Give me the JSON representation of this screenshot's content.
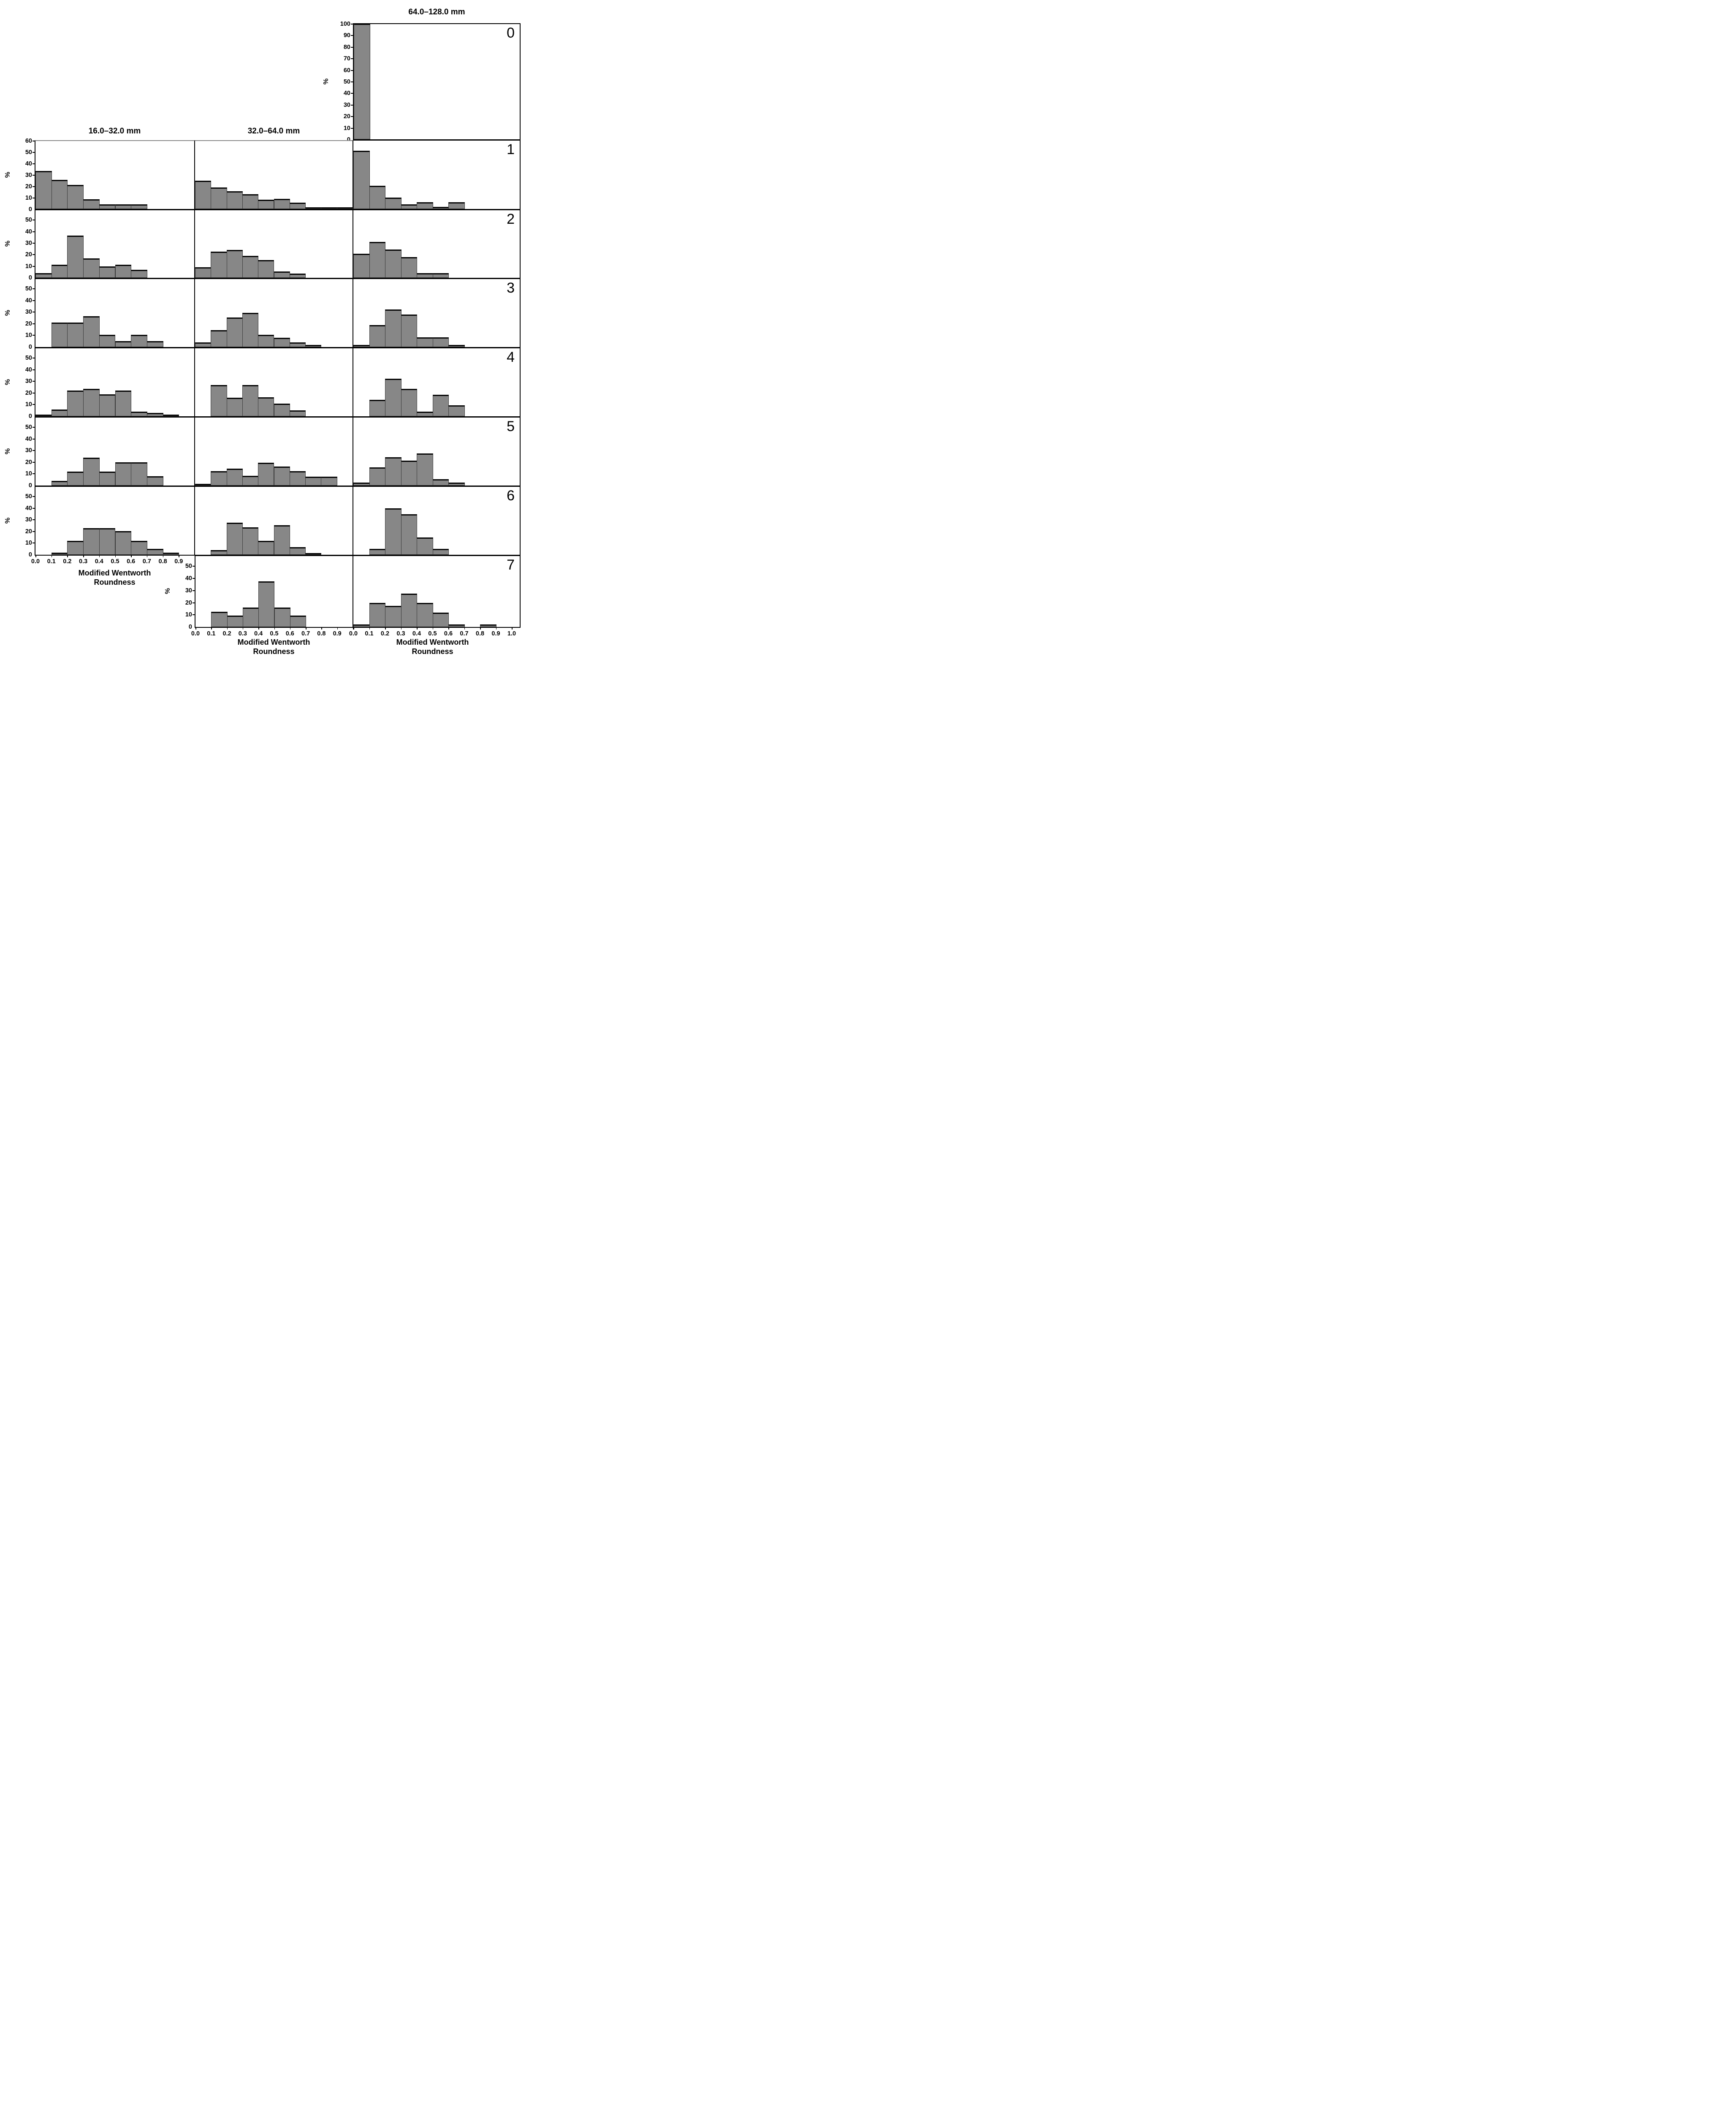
{
  "figure": {
    "column_titles": [
      "16.0–32.0 mm",
      "32.0–64.0 mm",
      "64.0–128.0 mm"
    ],
    "y_axis_label": "%",
    "x_axis_title_line1": "Modified Wentworth",
    "x_axis_title_line2": "Roundness",
    "bar_fill_color": "#878787",
    "bar_edge_color": "#050505",
    "bin_left_edges": [
      0.0,
      0.1,
      0.2,
      0.3,
      0.4,
      0.5,
      0.6,
      0.7,
      0.8,
      0.9
    ],
    "bin_width": 0.1,
    "xtick_labels_short": [
      "0.0",
      "0.1",
      "0.2",
      "0.3",
      "0.4",
      "0.5",
      "0.6",
      "0.7",
      "0.8",
      "0.9"
    ],
    "xtick_labels_full": [
      "0.0",
      "0.1",
      "0.2",
      "0.3",
      "0.4",
      "0.5",
      "0.6",
      "0.7",
      "0.8",
      "0.9",
      "1.0"
    ],
    "panel_numbers": [
      "0",
      "1",
      "2",
      "3",
      "4",
      "5",
      "6",
      "7"
    ]
  },
  "chart_data": [
    {
      "type": "bar",
      "panel_label": "0",
      "row": 0,
      "col": "R",
      "size_class": "64.0–128.0 mm",
      "values": [
        100,
        0,
        0,
        0,
        0,
        0,
        0,
        0,
        0,
        0
      ],
      "ylim": [
        0,
        100
      ],
      "yticks": [
        0,
        10,
        20,
        30,
        40,
        50,
        60,
        70,
        80,
        90,
        100
      ],
      "ylabel": "%",
      "show_yticklabels": true,
      "show_xticklabels": false,
      "xtick_set": "none"
    },
    {
      "type": "bar",
      "panel_label": "1",
      "row": 1,
      "col": "L",
      "size_class": "16.0–32.0 mm",
      "values": [
        33.5,
        25.5,
        21,
        8.5,
        4,
        4,
        4,
        0,
        0,
        0
      ],
      "ylim": [
        0,
        60
      ],
      "yticks": [
        0,
        10,
        20,
        30,
        40,
        50,
        60
      ],
      "ylabel": "%",
      "show_yticklabels": true,
      "show_xticklabels": false,
      "xtick_set": "none"
    },
    {
      "type": "bar",
      "panel_label": "1",
      "row": 1,
      "col": "M",
      "size_class": "32.0–64.0 mm",
      "values": [
        25,
        19,
        15.5,
        13,
        8,
        9,
        5.5,
        1.5,
        1.5,
        1.5
      ],
      "ylim": [
        0,
        60
      ],
      "yticks": [
        0,
        10,
        20,
        30,
        40,
        50,
        60
      ],
      "ylabel": "",
      "show_yticklabels": false,
      "show_xticklabels": false,
      "xtick_set": "none"
    },
    {
      "type": "bar",
      "panel_label": "1",
      "row": 1,
      "col": "R",
      "size_class": "64.0–128.0 mm",
      "values": [
        51,
        20.5,
        10,
        4,
        6,
        2,
        6,
        0,
        0,
        0
      ],
      "ylim": [
        0,
        60
      ],
      "yticks": [
        0,
        10,
        20,
        30,
        40,
        50,
        60
      ],
      "ylabel": "",
      "show_yticklabels": false,
      "show_xticklabels": false,
      "xtick_set": "none"
    },
    {
      "type": "bar",
      "panel_label": "2",
      "row": 2,
      "col": "L",
      "size_class": "16.0–32.0 mm",
      "values": [
        4,
        11.5,
        36.5,
        17,
        10,
        11.5,
        7,
        0,
        0,
        0
      ],
      "ylim": [
        0,
        58.5
      ],
      "yticks": [
        0,
        10,
        20,
        30,
        40,
        50
      ],
      "ylabel": "%",
      "show_yticklabels": true,
      "show_xticklabels": false,
      "xtick_set": "none"
    },
    {
      "type": "bar",
      "panel_label": "2",
      "row": 2,
      "col": "M",
      "size_class": "32.0–64.0 mm",
      "values": [
        9,
        22.5,
        24,
        19,
        15.5,
        5.5,
        3.5,
        0,
        0,
        0
      ],
      "ylim": [
        0,
        58.5
      ],
      "yticks": [
        0,
        10,
        20,
        30,
        40,
        50
      ],
      "ylabel": "",
      "show_yticklabels": false,
      "show_xticklabels": false,
      "xtick_set": "none"
    },
    {
      "type": "bar",
      "panel_label": "2",
      "row": 2,
      "col": "R",
      "size_class": "64.0–128.0 mm",
      "values": [
        21,
        31,
        24.5,
        18,
        4,
        4,
        0,
        0,
        0,
        0
      ],
      "ylim": [
        0,
        58.5
      ],
      "yticks": [
        0,
        10,
        20,
        30,
        40,
        50
      ],
      "ylabel": "",
      "show_yticklabels": false,
      "show_xticklabels": false,
      "xtick_set": "none"
    },
    {
      "type": "bar",
      "panel_label": "3",
      "row": 3,
      "col": "L",
      "size_class": "16.0–32.0 mm",
      "values": [
        0,
        21,
        21,
        26.5,
        10.5,
        5,
        10.5,
        5,
        0,
        0
      ],
      "ylim": [
        0,
        58.5
      ],
      "yticks": [
        0,
        10,
        20,
        30,
        40,
        50
      ],
      "ylabel": "%",
      "show_yticklabels": true,
      "show_xticklabels": false,
      "xtick_set": "none"
    },
    {
      "type": "bar",
      "panel_label": "3",
      "row": 3,
      "col": "M",
      "size_class": "32.0–64.0 mm",
      "values": [
        4,
        14.5,
        25.5,
        29.5,
        10.5,
        8,
        4,
        2,
        0,
        0
      ],
      "ylim": [
        0,
        58.5
      ],
      "yticks": [
        0,
        10,
        20,
        30,
        40,
        50
      ],
      "ylabel": "",
      "show_yticklabels": false,
      "show_xticklabels": false,
      "xtick_set": "none"
    },
    {
      "type": "bar",
      "panel_label": "3",
      "row": 3,
      "col": "R",
      "size_class": "64.0–128.0 mm",
      "values": [
        2,
        19,
        32.5,
        28,
        8.5,
        8.5,
        2,
        0,
        0,
        0
      ],
      "ylim": [
        0,
        58.5
      ],
      "yticks": [
        0,
        10,
        20,
        30,
        40,
        50
      ],
      "ylabel": "",
      "show_yticklabels": false,
      "show_xticklabels": false,
      "xtick_set": "none"
    },
    {
      "type": "bar",
      "panel_label": "4",
      "row": 4,
      "col": "L",
      "size_class": "16.0–32.0 mm",
      "values": [
        1.5,
        6,
        22,
        23.5,
        19,
        22,
        4,
        3,
        1.5,
        0
      ],
      "ylim": [
        0,
        58.5
      ],
      "yticks": [
        0,
        10,
        20,
        30,
        40,
        50
      ],
      "ylabel": "%",
      "show_yticklabels": true,
      "show_xticklabels": false,
      "xtick_set": "none"
    },
    {
      "type": "bar",
      "panel_label": "4",
      "row": 4,
      "col": "M",
      "size_class": "32.0–64.0 mm",
      "values": [
        0,
        27,
        16,
        27,
        16.5,
        11,
        5,
        0,
        0,
        0
      ],
      "ylim": [
        0,
        58.5
      ],
      "yticks": [
        0,
        10,
        20,
        30,
        40,
        50
      ],
      "ylabel": "",
      "show_yticklabels": false,
      "show_xticklabels": false,
      "xtick_set": "none"
    },
    {
      "type": "bar",
      "panel_label": "4",
      "row": 4,
      "col": "R",
      "size_class": "64.0–128.0 mm",
      "values": [
        0,
        14,
        32.5,
        23.5,
        4,
        18.5,
        9.5,
        0,
        0,
        0
      ],
      "ylim": [
        0,
        58.5
      ],
      "yticks": [
        0,
        10,
        20,
        30,
        40,
        50
      ],
      "ylabel": "",
      "show_yticklabels": false,
      "show_xticklabels": false,
      "xtick_set": "none"
    },
    {
      "type": "bar",
      "panel_label": "5",
      "row": 5,
      "col": "L",
      "size_class": "16.0–32.0 mm",
      "values": [
        0,
        4,
        12,
        24,
        12,
        20,
        20,
        8,
        0,
        0
      ],
      "ylim": [
        0,
        58.5
      ],
      "yticks": [
        0,
        10,
        20,
        30,
        40,
        50
      ],
      "ylabel": "%",
      "show_yticklabels": true,
      "show_xticklabels": false,
      "xtick_set": "none"
    },
    {
      "type": "bar",
      "panel_label": "5",
      "row": 5,
      "col": "M",
      "size_class": "32.0–64.0 mm",
      "values": [
        1.5,
        12.5,
        14.5,
        8.5,
        19.5,
        16.5,
        12.5,
        7.5,
        7.5,
        0
      ],
      "ylim": [
        0,
        58.5
      ],
      "yticks": [
        0,
        10,
        20,
        30,
        40,
        50
      ],
      "ylabel": "",
      "show_yticklabels": false,
      "show_xticklabels": false,
      "xtick_set": "none"
    },
    {
      "type": "bar",
      "panel_label": "5",
      "row": 5,
      "col": "R",
      "size_class": "64.0–128.0 mm",
      "values": [
        2.5,
        15.5,
        24.5,
        21.5,
        27.5,
        5.5,
        2.5,
        0,
        0,
        0
      ],
      "ylim": [
        0,
        58.5
      ],
      "yticks": [
        0,
        10,
        20,
        30,
        40,
        50
      ],
      "ylabel": "",
      "show_yticklabels": false,
      "show_xticklabels": false,
      "xtick_set": "none"
    },
    {
      "type": "bar",
      "panel_label": "6",
      "row": 6,
      "col": "L",
      "size_class": "16.0–32.0 mm",
      "values": [
        0,
        2,
        12,
        23,
        23,
        20.5,
        12,
        5,
        2,
        0
      ],
      "ylim": [
        0,
        58.5
      ],
      "yticks": [
        0,
        10,
        20,
        30,
        40,
        50
      ],
      "ylabel": "%",
      "show_yticklabels": true,
      "show_xticklabels": true,
      "xtick_set": "short"
    },
    {
      "type": "bar",
      "panel_label": "6",
      "row": 6,
      "col": "M",
      "size_class": "32.0–64.0 mm",
      "values": [
        0,
        4,
        27.5,
        23.5,
        12,
        25.5,
        6.5,
        1.5,
        0,
        0
      ],
      "ylim": [
        0,
        58.5
      ],
      "yticks": [
        0,
        10,
        20,
        30,
        40,
        50
      ],
      "ylabel": "",
      "show_yticklabels": false,
      "show_xticklabels": false,
      "xtick_set": "none"
    },
    {
      "type": "bar",
      "panel_label": "6",
      "row": 6,
      "col": "R",
      "size_class": "64.0–128.0 mm",
      "values": [
        0,
        5,
        40,
        35,
        15,
        5,
        0,
        0,
        0,
        0
      ],
      "ylim": [
        0,
        58.5
      ],
      "yticks": [
        0,
        10,
        20,
        30,
        40,
        50
      ],
      "ylabel": "",
      "show_yticklabels": false,
      "show_xticklabels": false,
      "xtick_set": "none"
    },
    {
      "type": "bar",
      "panel_label": "7",
      "row": 7,
      "col": "M",
      "size_class": "32.0–64.0 mm",
      "values": [
        0,
        12.5,
        9.5,
        16,
        37.5,
        16,
        9.5,
        0,
        0,
        0
      ],
      "ylim": [
        0,
        58.5
      ],
      "yticks": [
        0,
        10,
        20,
        30,
        40,
        50
      ],
      "ylabel": "%",
      "show_yticklabels": true,
      "show_xticklabels": true,
      "xtick_set": "short"
    },
    {
      "type": "bar",
      "panel_label": "7",
      "row": 7,
      "col": "R",
      "size_class": "64.0–128.0 mm",
      "values": [
        2,
        20,
        17.5,
        27.5,
        20,
        12,
        2,
        0,
        2,
        0
      ],
      "ylim": [
        0,
        58.5
      ],
      "yticks": [
        0,
        10,
        20,
        30,
        40,
        50
      ],
      "ylabel": "",
      "show_yticklabels": false,
      "show_xticklabels": true,
      "xtick_set": "full"
    }
  ]
}
